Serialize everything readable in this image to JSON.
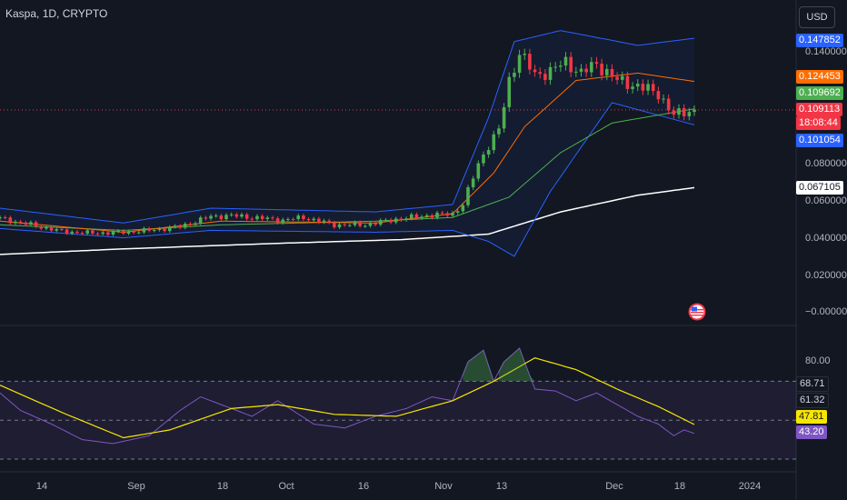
{
  "header": {
    "title": "Kaspa, 1D, CRYPTO",
    "currency_button": "USD"
  },
  "price_axis": {
    "ticks": [
      "0.140000",
      "0.080000",
      "0.060000",
      "0.040000",
      "0.020000",
      "−0.000000"
    ]
  },
  "price_tags": {
    "upper_band": "0.147852",
    "ema_orange": "0.124453",
    "ma_green": "0.109692",
    "last_price": "0.109113",
    "countdown": "18:08:44",
    "lower_band": "0.101054",
    "ma_white": "0.067105"
  },
  "rsi_axis": {
    "tick_80": "80.00",
    "upper_band_value": "68.71",
    "value_61": "61.32",
    "rsi_ma_value": "47.81",
    "rsi_value": "43.20"
  },
  "time_axis": {
    "labels": [
      "14",
      "Sep",
      "18",
      "Oct",
      "16",
      "Nov",
      "13",
      "Dec",
      "18",
      "2024"
    ]
  },
  "colors": {
    "background": "#131722",
    "up": "#26a69a",
    "up_candle": "#4caf50",
    "down_candle": "#f23645",
    "bollinger": "#2962ff",
    "ema": "#ff6d00",
    "ma_green": "#4caf50",
    "ma_white": "#ffffff",
    "rsi": "#7e57c2",
    "rsi_ma": "#f7e600"
  },
  "chart_data": {
    "type": "candlestick",
    "title": "Kaspa, 1D, CRYPTO",
    "xlabel": "",
    "ylabel": "",
    "ylim": [
      0,
      0.15
    ],
    "x_start": "2023-08-08",
    "x_end": "2023-12-21",
    "close_anchors": [
      [
        "2023-08-08",
        0.0505
      ],
      [
        "2023-08-14",
        0.047
      ],
      [
        "2023-08-20",
        0.0435
      ],
      [
        "2023-08-26",
        0.0425
      ],
      [
        "2023-09-01",
        0.043
      ],
      [
        "2023-09-06",
        0.044
      ],
      [
        "2023-09-12",
        0.046
      ],
      [
        "2023-09-18",
        0.0515
      ],
      [
        "2023-09-22",
        0.052
      ],
      [
        "2023-09-28",
        0.0505
      ],
      [
        "2023-10-02",
        0.0495
      ],
      [
        "2023-10-06",
        0.051
      ],
      [
        "2023-10-12",
        0.047
      ],
      [
        "2023-10-18",
        0.047
      ],
      [
        "2023-10-24",
        0.05
      ],
      [
        "2023-10-30",
        0.052
      ],
      [
        "2023-11-04",
        0.053
      ],
      [
        "2023-11-06",
        0.058
      ],
      [
        "2023-11-09",
        0.08
      ],
      [
        "2023-11-11",
        0.09
      ],
      [
        "2023-11-13",
        0.098
      ],
      [
        "2023-11-15",
        0.125
      ],
      [
        "2023-11-17",
        0.14
      ],
      [
        "2023-11-20",
        0.128
      ],
      [
        "2023-11-23",
        0.13
      ],
      [
        "2023-11-26",
        0.135
      ],
      [
        "2023-11-29",
        0.129
      ],
      [
        "2023-12-02",
        0.134
      ],
      [
        "2023-12-06",
        0.125
      ],
      [
        "2023-12-10",
        0.122
      ],
      [
        "2023-12-14",
        0.118
      ],
      [
        "2023-12-17",
        0.106
      ],
      [
        "2023-12-19",
        0.108
      ],
      [
        "2023-12-21",
        0.1091
      ]
    ],
    "indicators": {
      "bollinger_upper": [
        [
          "2023-08-08",
          0.056
        ],
        [
          "2023-09-01",
          0.048
        ],
        [
          "2023-09-18",
          0.056
        ],
        [
          "2023-10-20",
          0.054
        ],
        [
          "2023-11-04",
          0.058
        ],
        [
          "2023-11-11",
          0.105
        ],
        [
          "2023-11-16",
          0.146
        ],
        [
          "2023-11-25",
          0.152
        ],
        [
          "2023-12-10",
          0.144
        ],
        [
          "2023-12-21",
          0.1478
        ]
      ],
      "bollinger_lower": [
        [
          "2023-08-08",
          0.045
        ],
        [
          "2023-09-01",
          0.04
        ],
        [
          "2023-09-18",
          0.044
        ],
        [
          "2023-10-20",
          0.043
        ],
        [
          "2023-11-04",
          0.044
        ],
        [
          "2023-11-11",
          0.038
        ],
        [
          "2023-11-16",
          0.03
        ],
        [
          "2023-11-23",
          0.065
        ],
        [
          "2023-12-05",
          0.113
        ],
        [
          "2023-12-21",
          0.101
        ]
      ],
      "ema_orange": [
        [
          "2023-08-08",
          0.049
        ],
        [
          "2023-09-01",
          0.043
        ],
        [
          "2023-09-20",
          0.049
        ],
        [
          "2023-10-20",
          0.048
        ],
        [
          "2023-11-04",
          0.053
        ],
        [
          "2023-11-12",
          0.075
        ],
        [
          "2023-11-18",
          0.1
        ],
        [
          "2023-11-28",
          0.125
        ],
        [
          "2023-12-10",
          0.129
        ],
        [
          "2023-12-21",
          0.1245
        ]
      ],
      "ma_green": [
        [
          "2023-08-08",
          0.047
        ],
        [
          "2023-09-01",
          0.044
        ],
        [
          "2023-09-20",
          0.047
        ],
        [
          "2023-10-20",
          0.049
        ],
        [
          "2023-11-04",
          0.051
        ],
        [
          "2023-11-15",
          0.062
        ],
        [
          "2023-11-25",
          0.086
        ],
        [
          "2023-12-05",
          0.102
        ],
        [
          "2023-12-21",
          0.1097
        ]
      ],
      "ma_white": [
        [
          "2023-08-08",
          0.031
        ],
        [
          "2023-09-01",
          0.034
        ],
        [
          "2023-10-01",
          0.037
        ],
        [
          "2023-10-25",
          0.039
        ],
        [
          "2023-11-11",
          0.042
        ],
        [
          "2023-11-25",
          0.054
        ],
        [
          "2023-12-10",
          0.063
        ],
        [
          "2023-12-21",
          0.0671
        ]
      ]
    },
    "rsi": {
      "ylim": [
        30,
        100
      ],
      "bands": [
        30,
        50,
        70
      ],
      "rsi_line": [
        [
          "2023-08-08",
          64
        ],
        [
          "2023-08-12",
          55
        ],
        [
          "2023-08-18",
          48
        ],
        [
          "2023-08-24",
          40
        ],
        [
          "2023-08-30",
          38
        ],
        [
          "2023-09-06",
          42
        ],
        [
          "2023-09-12",
          55
        ],
        [
          "2023-09-16",
          62
        ],
        [
          "2023-09-20",
          58
        ],
        [
          "2023-09-26",
          52
        ],
        [
          "2023-10-01",
          60
        ],
        [
          "2023-10-08",
          48
        ],
        [
          "2023-10-14",
          46
        ],
        [
          "2023-10-20",
          52
        ],
        [
          "2023-10-26",
          56
        ],
        [
          "2023-10-31",
          62
        ],
        [
          "2023-11-04",
          60
        ],
        [
          "2023-11-07",
          80
        ],
        [
          "2023-11-10",
          86
        ],
        [
          "2023-11-12",
          70
        ],
        [
          "2023-11-14",
          80
        ],
        [
          "2023-11-17",
          87
        ],
        [
          "2023-11-20",
          66
        ],
        [
          "2023-11-24",
          65
        ],
        [
          "2023-11-28",
          60
        ],
        [
          "2023-12-02",
          64
        ],
        [
          "2023-12-06",
          58
        ],
        [
          "2023-12-10",
          52
        ],
        [
          "2023-12-14",
          48
        ],
        [
          "2023-12-17",
          42
        ],
        [
          "2023-12-19",
          45
        ],
        [
          "2023-12-21",
          43.2
        ]
      ],
      "rsi_ma": [
        [
          "2023-08-08",
          68
        ],
        [
          "2023-08-20",
          54
        ],
        [
          "2023-09-01",
          41
        ],
        [
          "2023-09-10",
          45
        ],
        [
          "2023-09-22",
          56
        ],
        [
          "2023-10-01",
          58
        ],
        [
          "2023-10-12",
          53
        ],
        [
          "2023-10-24",
          52
        ],
        [
          "2023-11-04",
          60
        ],
        [
          "2023-11-12",
          70
        ],
        [
          "2023-11-20",
          82
        ],
        [
          "2023-11-28",
          76
        ],
        [
          "2023-12-06",
          66
        ],
        [
          "2023-12-14",
          57
        ],
        [
          "2023-12-21",
          47.8
        ]
      ]
    }
  }
}
